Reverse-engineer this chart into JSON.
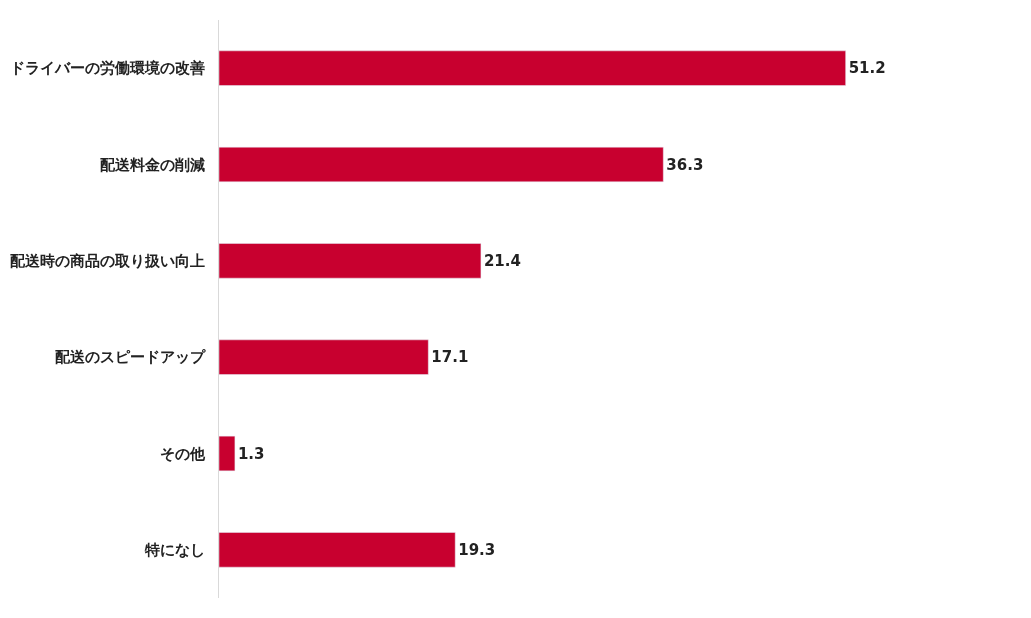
{
  "chart_data": {
    "type": "bar",
    "orientation": "horizontal",
    "categories": [
      "ドライバーの労働環境の改善",
      "配送料金の削減",
      "配送時の商品の取り扱い向上",
      "配送のスピードアップ",
      "その他",
      "特になし"
    ],
    "values": [
      51.2,
      36.3,
      21.4,
      17.1,
      1.3,
      19.3
    ],
    "color": "#c8002f",
    "data_labels": true
  }
}
